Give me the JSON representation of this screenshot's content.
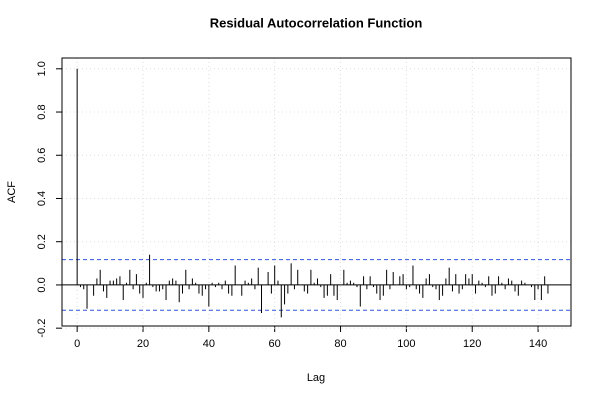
{
  "chart_data": {
    "type": "bar",
    "title": "Residual Autocorrelation Function",
    "xlabel": "Lag",
    "ylabel": "ACF",
    "x": [
      0,
      1,
      2,
      3,
      4,
      5,
      6,
      7,
      8,
      9,
      10,
      11,
      12,
      13,
      14,
      15,
      16,
      17,
      18,
      19,
      20,
      21,
      22,
      23,
      24,
      25,
      26,
      27,
      28,
      29,
      30,
      31,
      32,
      33,
      34,
      35,
      36,
      37,
      38,
      39,
      40,
      41,
      42,
      43,
      44,
      45,
      46,
      47,
      48,
      49,
      50,
      51,
      52,
      53,
      54,
      55,
      56,
      57,
      58,
      59,
      60,
      61,
      62,
      63,
      64,
      65,
      66,
      67,
      68,
      69,
      70,
      71,
      72,
      73,
      74,
      75,
      76,
      77,
      78,
      79,
      80,
      81,
      82,
      83,
      84,
      85,
      86,
      87,
      88,
      89,
      90,
      91,
      92,
      93,
      94,
      95,
      96,
      97,
      98,
      99,
      100,
      101,
      102,
      103,
      104,
      105,
      106,
      107,
      108,
      109,
      110,
      111,
      112,
      113,
      114,
      115,
      116,
      117,
      118,
      119,
      120,
      121,
      122,
      123,
      124,
      125,
      126,
      127,
      128,
      129,
      130,
      131,
      132,
      133,
      134,
      135,
      136,
      137,
      138,
      139,
      140,
      141,
      142,
      143
    ],
    "values": [
      1.0,
      -0.01,
      -0.02,
      -0.11,
      0.0,
      -0.05,
      0.03,
      0.07,
      -0.03,
      -0.06,
      0.02,
      0.02,
      0.03,
      0.04,
      -0.07,
      0.01,
      0.07,
      -0.02,
      0.05,
      -0.04,
      -0.06,
      0.01,
      0.14,
      -0.01,
      -0.03,
      -0.03,
      -0.02,
      -0.07,
      0.02,
      0.03,
      0.02,
      -0.08,
      -0.04,
      0.07,
      -0.02,
      0.03,
      0.01,
      -0.04,
      -0.05,
      -0.02,
      -0.1,
      0.01,
      -0.01,
      0.01,
      -0.02,
      0.02,
      -0.04,
      -0.05,
      0.09,
      0.0,
      -0.05,
      0.02,
      0.01,
      0.03,
      -0.02,
      0.08,
      -0.13,
      0.0,
      0.06,
      -0.04,
      0.09,
      0.02,
      -0.15,
      -0.09,
      -0.04,
      0.1,
      -0.02,
      0.07,
      0.0,
      -0.03,
      -0.04,
      0.07,
      0.01,
      0.03,
      -0.01,
      -0.06,
      -0.05,
      0.05,
      -0.05,
      -0.07,
      0.0,
      0.07,
      0.01,
      0.02,
      0.01,
      -0.01,
      -0.1,
      0.04,
      -0.02,
      0.04,
      -0.01,
      -0.04,
      -0.07,
      -0.05,
      0.07,
      -0.02,
      0.06,
      0.0,
      0.04,
      0.05,
      -0.02,
      -0.01,
      0.09,
      -0.02,
      -0.04,
      -0.06,
      0.03,
      0.05,
      -0.01,
      -0.02,
      -0.07,
      -0.05,
      0.03,
      0.08,
      -0.03,
      0.05,
      -0.04,
      -0.02,
      0.05,
      0.03,
      0.05,
      -0.04,
      0.02,
      0.01,
      -0.01,
      0.04,
      -0.05,
      -0.04,
      0.04,
      0.01,
      -0.02,
      0.03,
      0.02,
      -0.03,
      -0.05,
      0.02,
      0.01,
      0.0,
      -0.01,
      -0.07,
      -0.02,
      -0.07,
      0.04,
      -0.04
    ],
    "color": "#000000",
    "hlines": [
      0.117,
      -0.117
    ],
    "hline_color": "#3355dd",
    "xlim": [
      -4.6,
      150
    ],
    "ylim": [
      -0.19,
      1.05
    ],
    "xticks": [
      0,
      20,
      40,
      60,
      80,
      100,
      120,
      140
    ],
    "yticks": [
      -0.2,
      {
        "value": 0,
        "label": "0.0"
      },
      0.2,
      0.4,
      0.6,
      0.8,
      {
        "value": 1,
        "label": "1.0"
      }
    ],
    "grid": true
  }
}
